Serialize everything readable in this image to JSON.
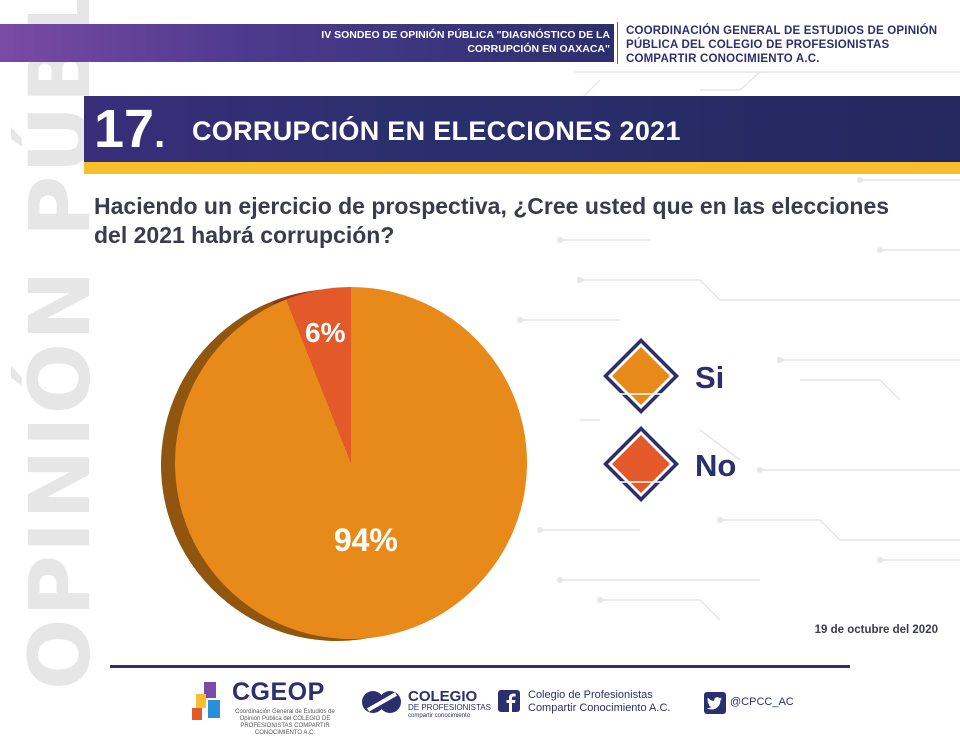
{
  "header": {
    "survey_title": "IV SONDEO DE OPINIÓN PÚBLICA \"DIAGNÓSTICO DE LA CORRUPCIÓN EN OAXACA\"",
    "organization": "COORDINACIÓN GENERAL DE ESTUDIOS DE OPINIÓN PÚBLICA DEL COLEGIO DE PROFESIONISTAS COMPARTIR CONOCIMIENTO A.C."
  },
  "side_watermark": "OPINIÓN PÚBLICA",
  "section": {
    "number": "17",
    "title": "CORRUPCIÓN EN ELECCIONES 2021"
  },
  "question": "Haciendo un ejercicio de prospectiva, ¿Cree usted que en las elecciones del 2021 habrá corrupción?",
  "chart_data": {
    "type": "pie",
    "categories": [
      "Si",
      "No"
    ],
    "values": [
      94,
      6
    ],
    "labels": [
      "94%",
      "6%"
    ],
    "colors": [
      "#e88a1a",
      "#e4592a"
    ],
    "legend_position": "right"
  },
  "date": "19 de octubre del 2020",
  "footer": {
    "cgeop_logo_text": "CGEOP",
    "cgeop_sub": "Coordinación General de Estudios de Opinión Pública del COLEGIO DE PROFESIONISTAS COMPARTIR CONOCIMIENTO A.C.",
    "colegio_title": "COLEGIO",
    "colegio_sub_1": "DE PROFESIONISTAS",
    "colegio_sub_2": "compartir conocimiento",
    "facebook_text": "Colegio de Profesionistas Compartir Conocimiento A.C.",
    "twitter_handle": "@CPCC_AC"
  },
  "colors": {
    "navy": "#2c2f6e",
    "purple": "#7a4aa6",
    "yellow": "#f7bf2e",
    "orange": "#e88a1a",
    "red_orange": "#e4592a"
  }
}
